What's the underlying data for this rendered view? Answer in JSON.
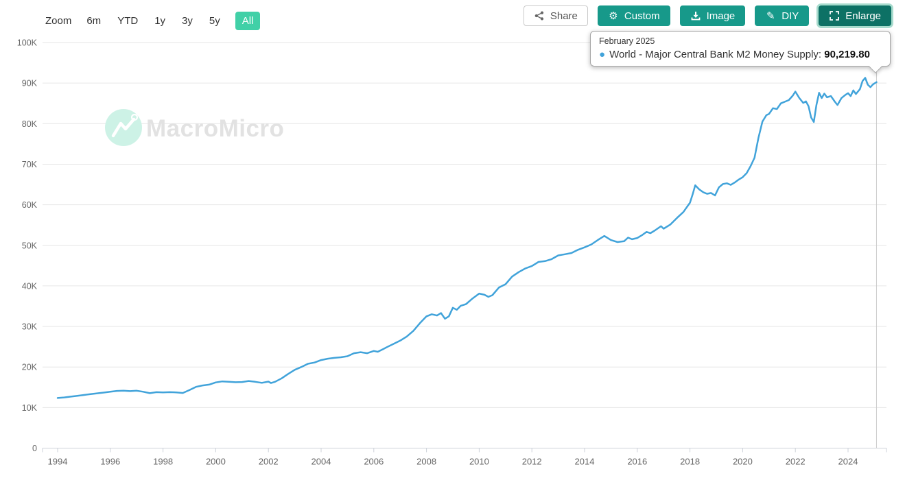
{
  "toolbar": {
    "zoom_label": "Zoom",
    "ranges": [
      {
        "label": "6m",
        "active": false
      },
      {
        "label": "YTD",
        "active": false
      },
      {
        "label": "1y",
        "active": false
      },
      {
        "label": "3y",
        "active": false
      },
      {
        "label": "5y",
        "active": false
      },
      {
        "label": "All",
        "active": true
      }
    ],
    "actions": [
      {
        "label": "Share",
        "icon": "share-nodes-icon",
        "style": "outline"
      },
      {
        "label": "Custom",
        "icon": "gear-icon",
        "style": "teal"
      },
      {
        "label": "Image",
        "icon": "download-icon",
        "style": "teal"
      },
      {
        "label": "DIY",
        "icon": "pencil-icon",
        "style": "teal"
      },
      {
        "label": "Enlarge",
        "icon": "expand-icon",
        "style": "teal-dark"
      }
    ]
  },
  "watermark": {
    "text": "MacroMicro",
    "icon": "macromicro-logo-icon"
  },
  "tooltip": {
    "date": "February 2025",
    "series_label": "World - Major Central Bank M2 Money Supply",
    "separator": ": ",
    "value": "90,219.80"
  },
  "colors": {
    "line": "#41a3da",
    "grid": "#e6e6e6",
    "axis_line": "#ccd1d9",
    "tick_text": "#666666",
    "crosshair": "#cccccc",
    "range_active_bg": "#41d0a7",
    "button_teal": "#17998a",
    "button_teal_dark": "#0d7165",
    "watermark_text": "#e2e2e2",
    "watermark_circle": "#cdf2e6"
  },
  "chart_data": {
    "type": "line",
    "title": "",
    "xlabel": "",
    "ylabel": "",
    "grid": "horizontal",
    "legend": "none (tooltip only)",
    "xlim": [
      1993.4,
      2025.4
    ],
    "ylim": [
      0,
      100000
    ],
    "x_ticks": [
      1994,
      1996,
      1998,
      2000,
      2002,
      2004,
      2006,
      2008,
      2010,
      2012,
      2014,
      2016,
      2018,
      2020,
      2022,
      2024
    ],
    "y_ticks": [
      [
        0,
        "0"
      ],
      [
        10000,
        "10K"
      ],
      [
        20000,
        "20K"
      ],
      [
        30000,
        "30K"
      ],
      [
        40000,
        "40K"
      ],
      [
        50000,
        "50K"
      ],
      [
        60000,
        "60K"
      ],
      [
        70000,
        "70K"
      ],
      [
        80000,
        "80K"
      ],
      [
        90000,
        "90K"
      ],
      [
        100000,
        "100K"
      ]
    ],
    "hovered_point": {
      "x": 2025.08,
      "date": "February 2025",
      "value": 90219.8
    },
    "series": [
      {
        "name": "World - Major Central Bank M2 Money Supply",
        "color": "#41a3da",
        "points": [
          [
            1994.0,
            12350
          ],
          [
            1994.25,
            12500
          ],
          [
            1994.5,
            12700
          ],
          [
            1994.75,
            12900
          ],
          [
            1995.0,
            13100
          ],
          [
            1995.25,
            13300
          ],
          [
            1995.5,
            13500
          ],
          [
            1995.75,
            13700
          ],
          [
            1996.0,
            13900
          ],
          [
            1996.25,
            14100
          ],
          [
            1996.5,
            14150
          ],
          [
            1996.75,
            14050
          ],
          [
            1997.0,
            14150
          ],
          [
            1997.25,
            13900
          ],
          [
            1997.5,
            13550
          ],
          [
            1997.75,
            13800
          ],
          [
            1998.0,
            13750
          ],
          [
            1998.25,
            13800
          ],
          [
            1998.5,
            13750
          ],
          [
            1998.75,
            13600
          ],
          [
            1999.0,
            14300
          ],
          [
            1999.25,
            15100
          ],
          [
            1999.5,
            15450
          ],
          [
            1999.75,
            15650
          ],
          [
            2000.0,
            16200
          ],
          [
            2000.25,
            16450
          ],
          [
            2000.5,
            16350
          ],
          [
            2000.75,
            16250
          ],
          [
            2001.0,
            16300
          ],
          [
            2001.25,
            16550
          ],
          [
            2001.5,
            16350
          ],
          [
            2001.75,
            16100
          ],
          [
            2002.0,
            16400
          ],
          [
            2002.1,
            16050
          ],
          [
            2002.25,
            16350
          ],
          [
            2002.5,
            17200
          ],
          [
            2002.75,
            18300
          ],
          [
            2003.0,
            19300
          ],
          [
            2003.25,
            20000
          ],
          [
            2003.5,
            20800
          ],
          [
            2003.75,
            21100
          ],
          [
            2004.0,
            21700
          ],
          [
            2004.25,
            22050
          ],
          [
            2004.5,
            22250
          ],
          [
            2004.75,
            22400
          ],
          [
            2005.0,
            22650
          ],
          [
            2005.25,
            23400
          ],
          [
            2005.5,
            23650
          ],
          [
            2005.75,
            23400
          ],
          [
            2006.0,
            23950
          ],
          [
            2006.15,
            23750
          ],
          [
            2006.35,
            24400
          ],
          [
            2006.5,
            24900
          ],
          [
            2006.75,
            25700
          ],
          [
            2007.0,
            26500
          ],
          [
            2007.25,
            27500
          ],
          [
            2007.5,
            28900
          ],
          [
            2007.75,
            30800
          ],
          [
            2008.0,
            32500
          ],
          [
            2008.2,
            33000
          ],
          [
            2008.4,
            32700
          ],
          [
            2008.55,
            33300
          ],
          [
            2008.7,
            31900
          ],
          [
            2008.85,
            32500
          ],
          [
            2009.0,
            34600
          ],
          [
            2009.15,
            34100
          ],
          [
            2009.3,
            35100
          ],
          [
            2009.5,
            35500
          ],
          [
            2009.75,
            36900
          ],
          [
            2010.0,
            38100
          ],
          [
            2010.2,
            37800
          ],
          [
            2010.35,
            37300
          ],
          [
            2010.5,
            37700
          ],
          [
            2010.75,
            39600
          ],
          [
            2011.0,
            40400
          ],
          [
            2011.25,
            42300
          ],
          [
            2011.5,
            43400
          ],
          [
            2011.75,
            44300
          ],
          [
            2012.0,
            44900
          ],
          [
            2012.25,
            45900
          ],
          [
            2012.5,
            46100
          ],
          [
            2012.75,
            46600
          ],
          [
            2013.0,
            47500
          ],
          [
            2013.25,
            47800
          ],
          [
            2013.5,
            48100
          ],
          [
            2013.75,
            48900
          ],
          [
            2014.0,
            49500
          ],
          [
            2014.25,
            50200
          ],
          [
            2014.5,
            51300
          ],
          [
            2014.75,
            52300
          ],
          [
            2015.0,
            51300
          ],
          [
            2015.25,
            50800
          ],
          [
            2015.5,
            51000
          ],
          [
            2015.65,
            51900
          ],
          [
            2015.8,
            51500
          ],
          [
            2016.0,
            51800
          ],
          [
            2016.2,
            52600
          ],
          [
            2016.35,
            53300
          ],
          [
            2016.5,
            53000
          ],
          [
            2016.65,
            53600
          ],
          [
            2016.9,
            54700
          ],
          [
            2017.0,
            54100
          ],
          [
            2017.25,
            55100
          ],
          [
            2017.5,
            56700
          ],
          [
            2017.75,
            58200
          ],
          [
            2018.0,
            60500
          ],
          [
            2018.1,
            62500
          ],
          [
            2018.2,
            64800
          ],
          [
            2018.35,
            63800
          ],
          [
            2018.5,
            63100
          ],
          [
            2018.65,
            62700
          ],
          [
            2018.8,
            62900
          ],
          [
            2018.95,
            62300
          ],
          [
            2019.1,
            64300
          ],
          [
            2019.25,
            65100
          ],
          [
            2019.4,
            65300
          ],
          [
            2019.55,
            64900
          ],
          [
            2019.7,
            65500
          ],
          [
            2019.85,
            66200
          ],
          [
            2020.0,
            66800
          ],
          [
            2020.15,
            67800
          ],
          [
            2020.3,
            69500
          ],
          [
            2020.45,
            71600
          ],
          [
            2020.6,
            76500
          ],
          [
            2020.75,
            80500
          ],
          [
            2020.9,
            82100
          ],
          [
            2021.0,
            82400
          ],
          [
            2021.15,
            83800
          ],
          [
            2021.3,
            83600
          ],
          [
            2021.45,
            85000
          ],
          [
            2021.6,
            85400
          ],
          [
            2021.75,
            85800
          ],
          [
            2021.9,
            86900
          ],
          [
            2022.0,
            87900
          ],
          [
            2022.15,
            86300
          ],
          [
            2022.3,
            85100
          ],
          [
            2022.4,
            85500
          ],
          [
            2022.5,
            84300
          ],
          [
            2022.6,
            81500
          ],
          [
            2022.7,
            80400
          ],
          [
            2022.8,
            84600
          ],
          [
            2022.9,
            87600
          ],
          [
            2023.0,
            86300
          ],
          [
            2023.1,
            87400
          ],
          [
            2023.2,
            86500
          ],
          [
            2023.35,
            86800
          ],
          [
            2023.5,
            85400
          ],
          [
            2023.6,
            84600
          ],
          [
            2023.75,
            86300
          ],
          [
            2023.9,
            87100
          ],
          [
            2024.0,
            87500
          ],
          [
            2024.1,
            86800
          ],
          [
            2024.2,
            88200
          ],
          [
            2024.3,
            87300
          ],
          [
            2024.45,
            88500
          ],
          [
            2024.55,
            90500
          ],
          [
            2024.65,
            91300
          ],
          [
            2024.75,
            89600
          ],
          [
            2024.85,
            89000
          ],
          [
            2024.95,
            89700
          ],
          [
            2025.08,
            90219.8
          ]
        ]
      }
    ]
  }
}
